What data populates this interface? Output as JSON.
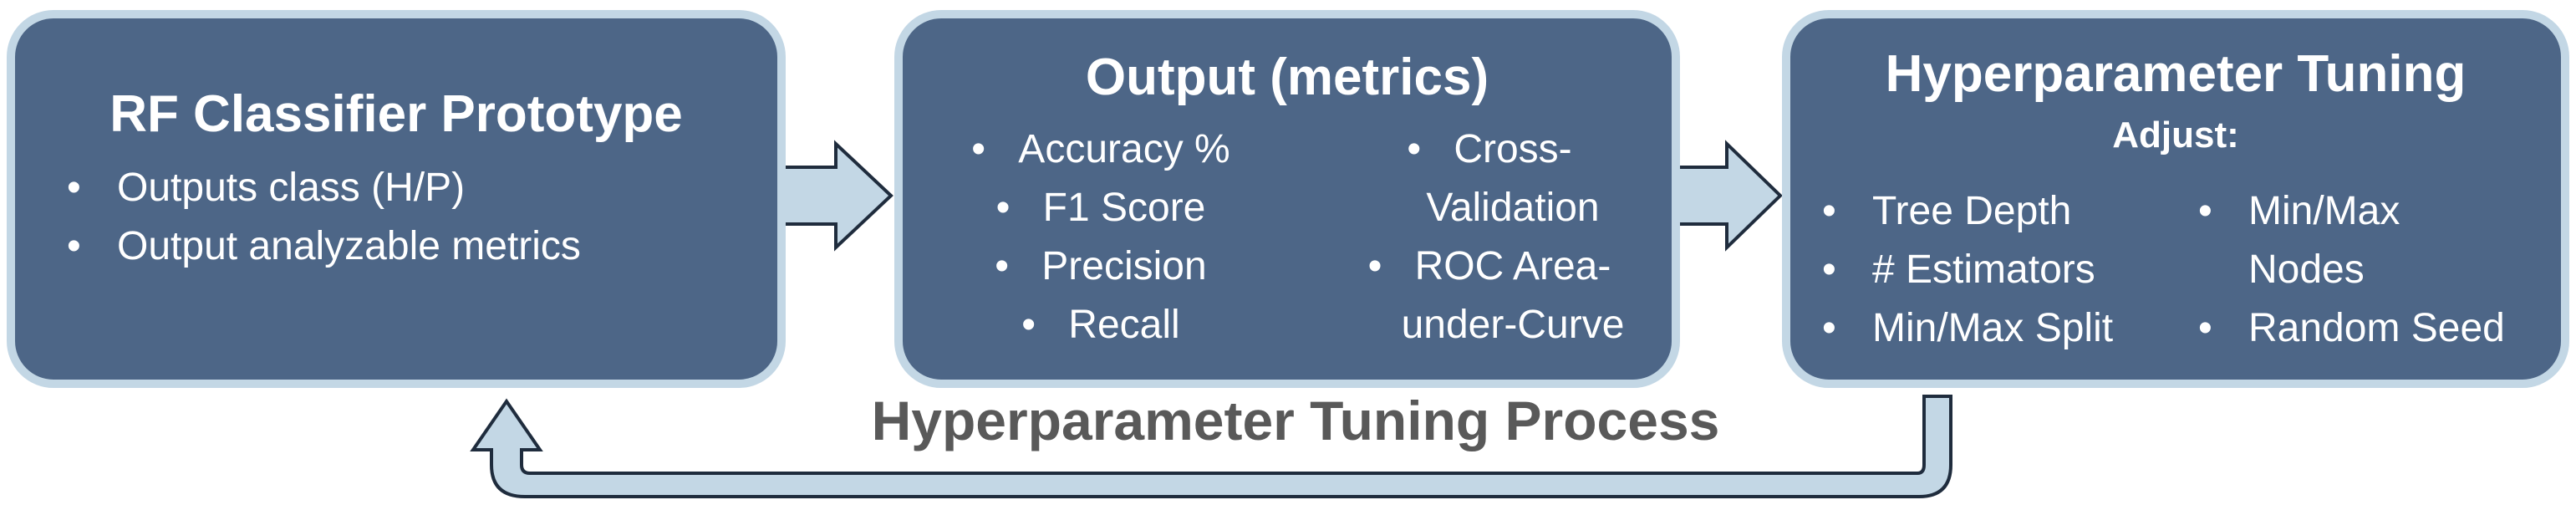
{
  "prototype": {
    "title": "RF Classifier Prototype",
    "items": [
      "Outputs class (H/P)",
      "Output analyzable metrics"
    ]
  },
  "output": {
    "title": "Output (metrics)",
    "left_items": [
      "Accuracy %",
      "F1 Score",
      "Precision",
      "Recall"
    ],
    "right_items": [
      {
        "lines": [
          "Cross-",
          "Validation"
        ]
      },
      {
        "lines": [
          "ROC Area-",
          "under-Curve"
        ]
      }
    ]
  },
  "tuning": {
    "title": "Hyperparameter Tuning",
    "subtitle": "Adjust:",
    "left_items": [
      "Tree Depth",
      "# Estimators",
      "Min/Max Split"
    ],
    "right_items": [
      {
        "lines": [
          "Min/Max",
          "Nodes"
        ]
      },
      {
        "lines": [
          "Random Seed"
        ]
      }
    ]
  },
  "loop_label": "Hyperparameter Tuning Process",
  "colors": {
    "box_fill": "#4d6687",
    "box_border": "#c3d7e5",
    "arrow_fill": "#c3d7e5",
    "arrow_stroke": "#1f2c3d",
    "label_text": "#595959"
  }
}
